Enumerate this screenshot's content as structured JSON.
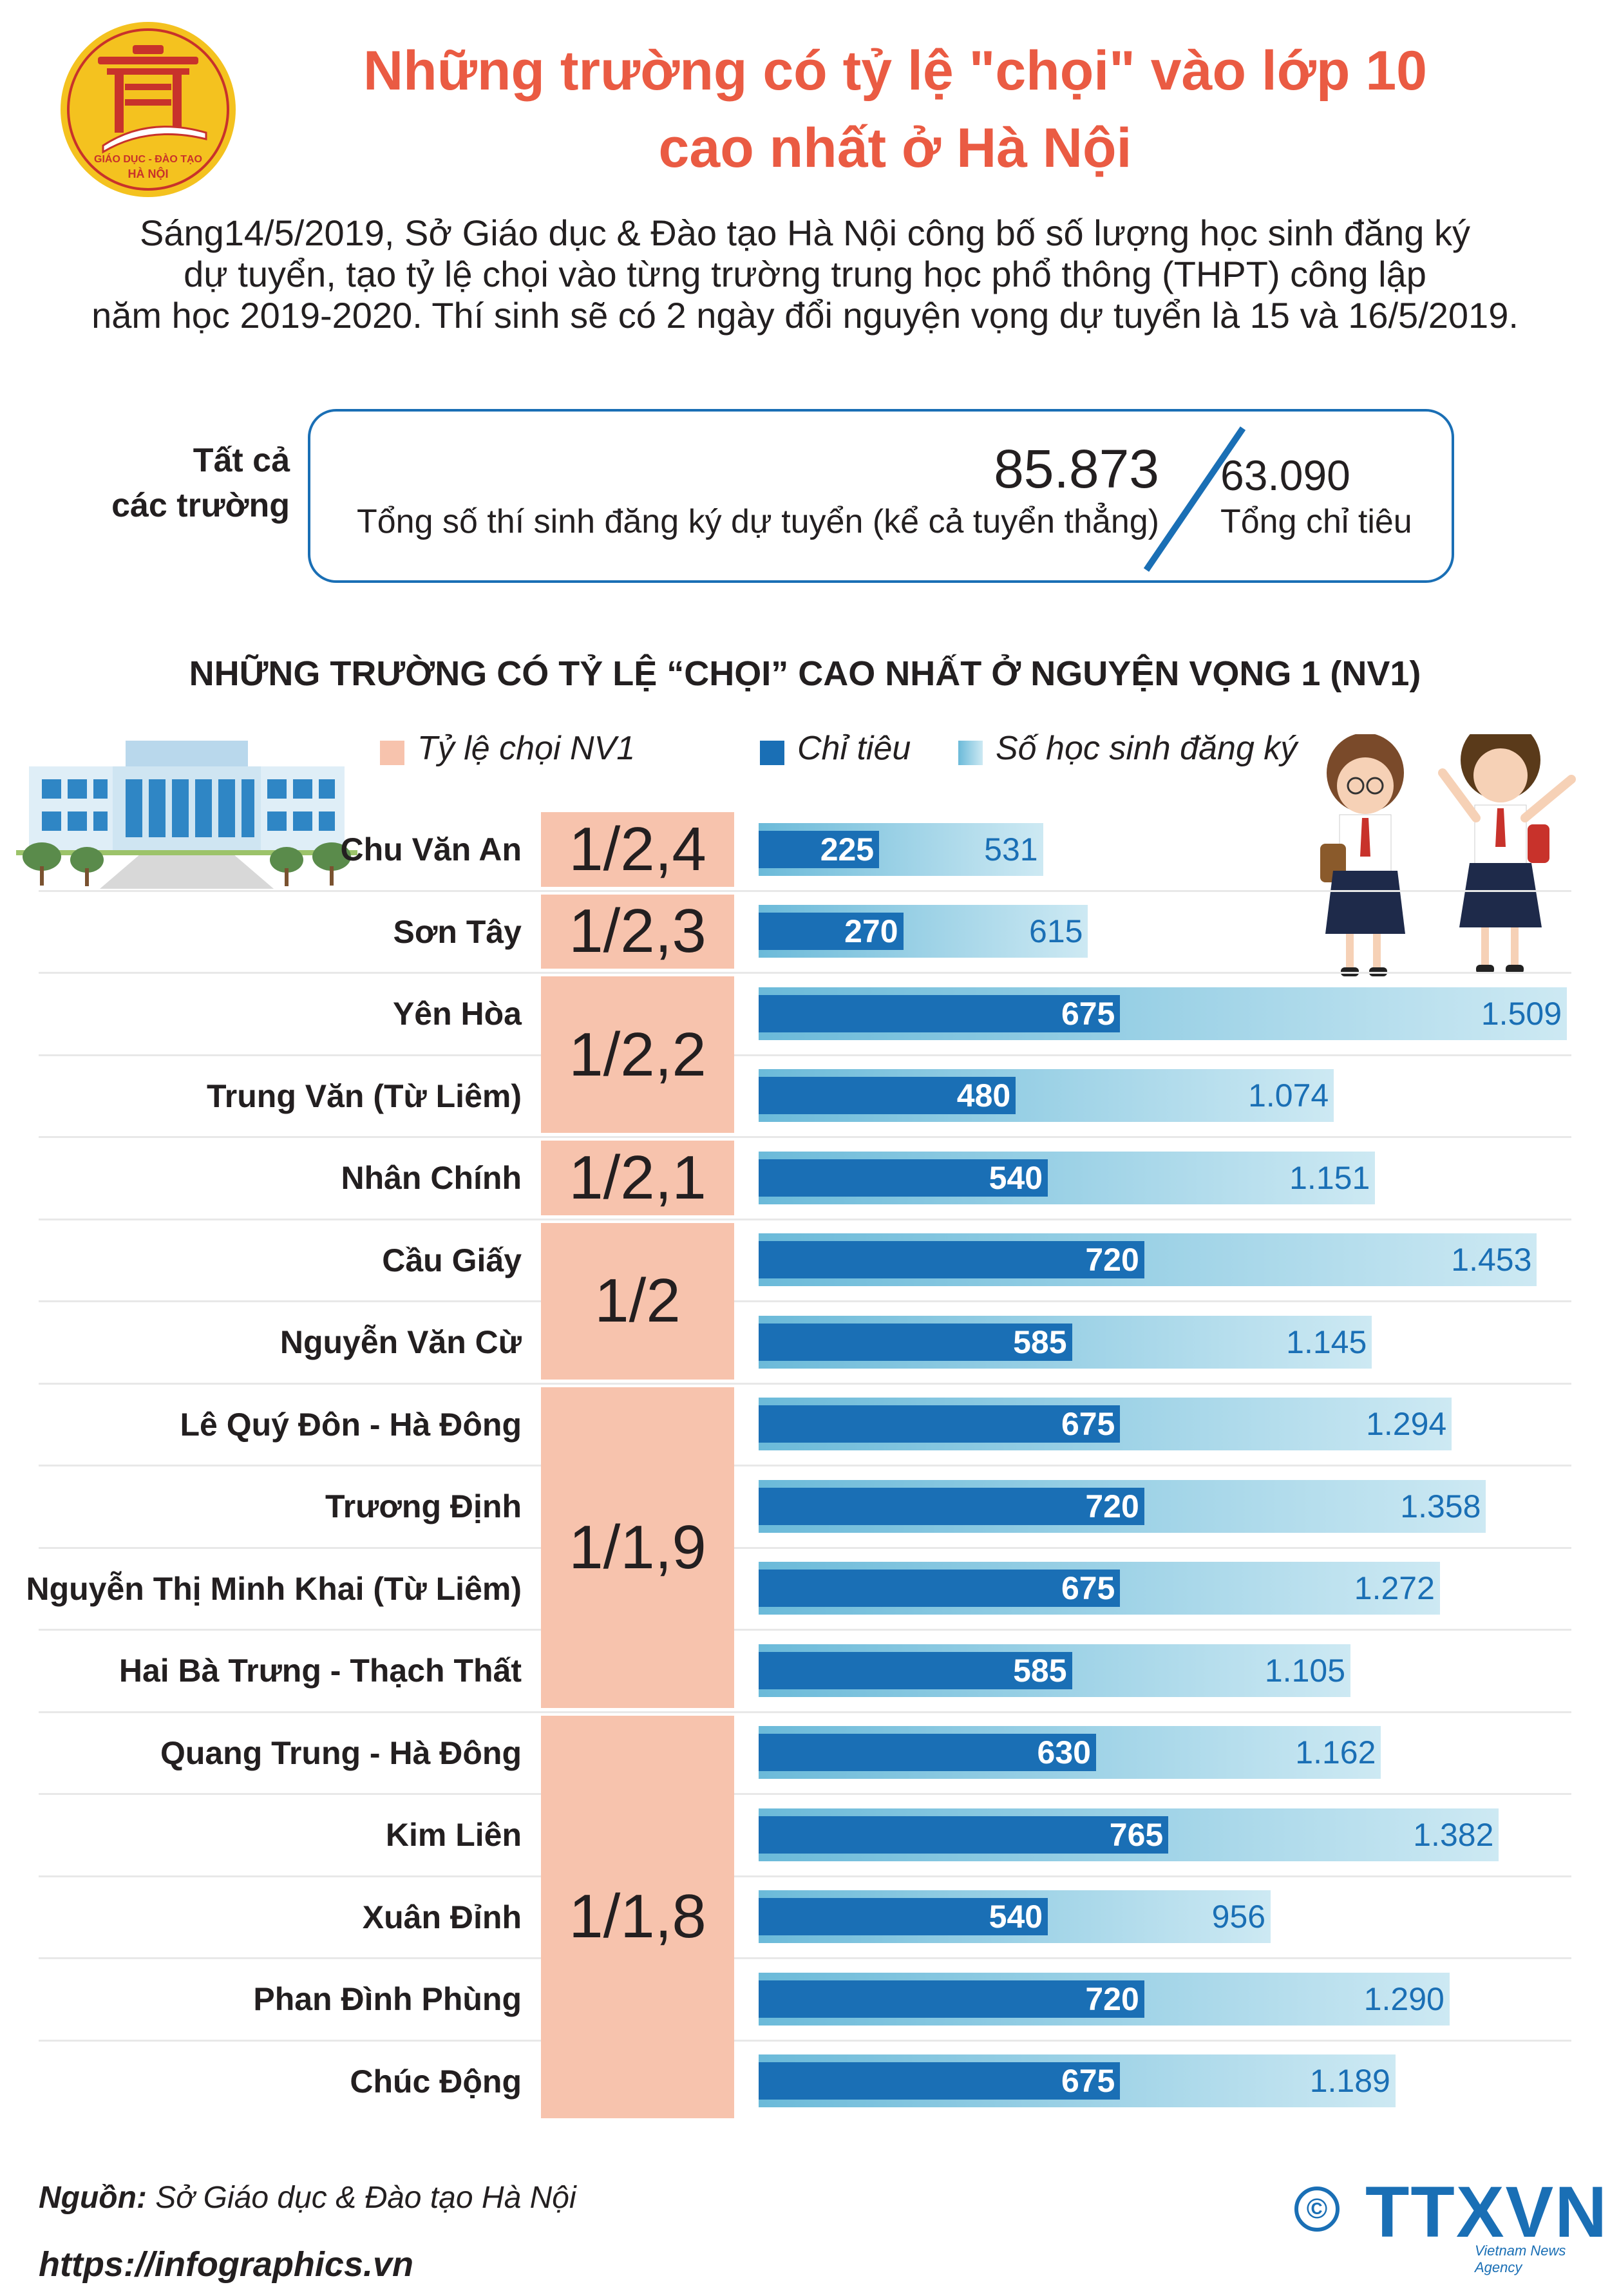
{
  "logo": {
    "text_top": "GIÁO DỤC - ĐÀO TẠO",
    "text_bottom": "HÀ NỘI"
  },
  "title_line1": "Những trường có tỷ lệ \"chọi\" vào lớp 10",
  "title_line2": "cao nhất ở Hà Nội",
  "intro": [
    "Sáng14/5/2019, Sở Giáo dục & Đào tạo Hà Nội công bố số lượng học sinh đăng ký",
    "dự tuyển, tạo tỷ lệ chọi vào từng trường trung học phổ thông (THPT) công lập",
    "năm học 2019-2020.  Thí sinh sẽ có 2 ngày đổi nguyện vọng dự tuyển là 15 và 16/5/2019."
  ],
  "summary": {
    "label_line1": "Tất cả",
    "label_line2": "các trường",
    "total_registered": "85.873",
    "total_registered_label": "Tổng số thí sinh đăng ký dự tuyển (kể cả tuyển thẳng)",
    "total_quota": "63.090",
    "total_quota_label": "Tổng chỉ tiêu"
  },
  "section_title": "NHỮNG TRƯỜNG CÓ TỶ LỆ “CHỌI” CAO NHẤT Ở NGUYỆN VỌNG 1 (NV1)",
  "legend": {
    "ratio": "Tỷ lệ chọi NV1",
    "quota": "Chỉ tiêu",
    "registered": "Số học sinh đăng ký"
  },
  "colors": {
    "title": "#ea5b43",
    "ratio_box": "#f7c3ad",
    "quota_bar": "#1a6fb5",
    "registered_bar": "#9fd3e6",
    "text_blue": "#1a6fb5"
  },
  "chart_data": {
    "type": "bar",
    "orientation": "horizontal",
    "title": "NHỮNG TRƯỜNG CÓ TỶ LỆ “CHỌI” CAO NHẤT Ở NGUYỆN VỌNG 1 (NV1)",
    "categories": [
      "Chu Văn An",
      "Sơn Tây",
      "Yên Hòa",
      "Trung Văn (Từ Liêm)",
      "Nhân Chính",
      "Cầu Giấy",
      "Nguyễn Văn Cừ",
      "Lê Quý Đôn - Hà Đông",
      "Trương Định",
      "Nguyễn Thị Minh Khai (Từ Liêm)",
      "Hai Bà Trưng - Thạch Thất",
      "Quang Trung - Hà Đông",
      "Kim Liên",
      "Xuân Đỉnh",
      "Phan Đình Phùng",
      "Chúc Động"
    ],
    "series": [
      {
        "name": "Chỉ tiêu",
        "values": [
          225,
          270,
          675,
          480,
          540,
          720,
          585,
          675,
          720,
          675,
          585,
          630,
          765,
          540,
          720,
          675
        ],
        "labels": [
          "225",
          "270",
          "675",
          "480",
          "540",
          "720",
          "585",
          "675",
          "720",
          "675",
          "585",
          "630",
          "765",
          "540",
          "720",
          "675"
        ]
      },
      {
        "name": "Số học sinh đăng ký",
        "values": [
          531,
          615,
          1509,
          1074,
          1151,
          1453,
          1145,
          1294,
          1358,
          1272,
          1105,
          1162,
          1382,
          956,
          1290,
          1189
        ],
        "labels": [
          "531",
          "615",
          "1.509",
          "1.074",
          "1.151",
          "1.453",
          "1.145",
          "1.294",
          "1.358",
          "1.272",
          "1.105",
          "1.162",
          "1.382",
          "956",
          "1.290",
          "1.189"
        ]
      }
    ],
    "ratio_groups": [
      {
        "label": "1/2,4",
        "value": 2.4,
        "start": 0,
        "count": 1
      },
      {
        "label": "1/2,3",
        "value": 2.3,
        "start": 1,
        "count": 1
      },
      {
        "label": "1/2,2",
        "value": 2.2,
        "start": 2,
        "count": 2
      },
      {
        "label": "1/2,1",
        "value": 2.1,
        "start": 4,
        "count": 1
      },
      {
        "label": "1/2",
        "value": 2.0,
        "start": 5,
        "count": 2
      },
      {
        "label": "1/1,9",
        "value": 1.9,
        "start": 7,
        "count": 4
      },
      {
        "label": "1/1,8",
        "value": 1.8,
        "start": 11,
        "count": 5
      }
    ],
    "xlim": [
      0,
      1509
    ]
  },
  "source_label": "Nguồn:",
  "source_text": " Sở Giáo dục & Đào tạo Hà Nội",
  "website": "https://infographics.vn",
  "brand": "TTXVN",
  "brand_sub": "Vietnam News Agency",
  "copyright_symbol": "©"
}
